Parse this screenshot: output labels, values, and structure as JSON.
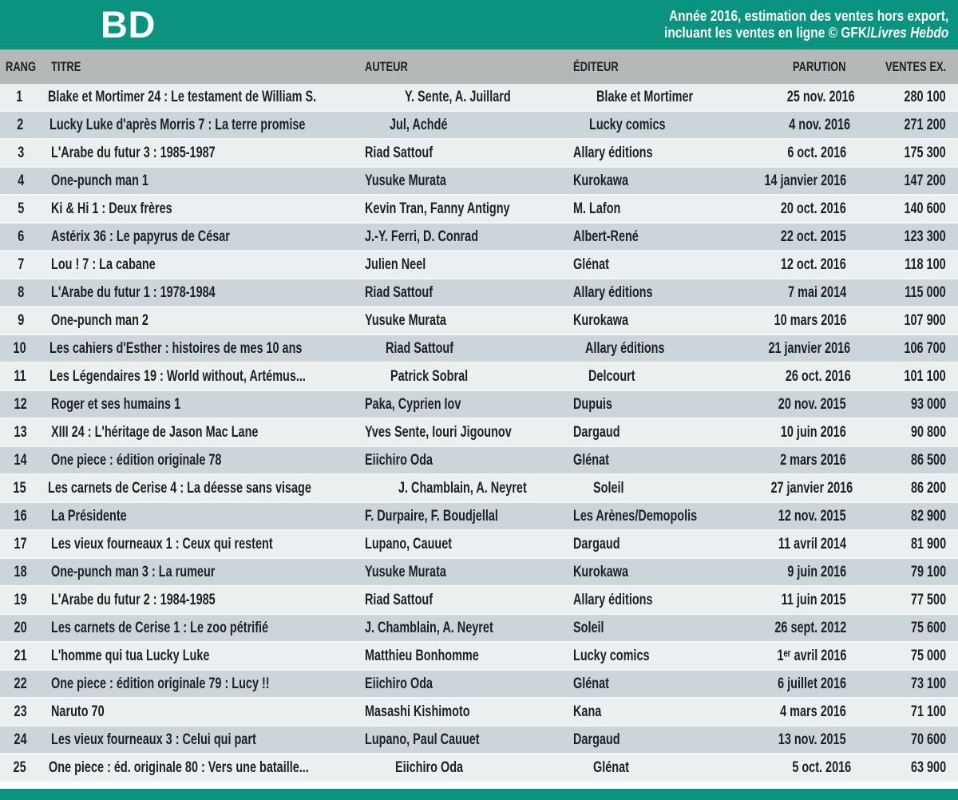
{
  "header": {
    "category": "BD",
    "note_line1": "Année 2016, estimation des ventes hors export,",
    "note_line2_prefix": "incluant les ventes en ligne © GFK/",
    "note_line2_italic": "Livres Hebdo"
  },
  "colors": {
    "teal": "#0a9480",
    "header_band": "#b4b8b7",
    "row_odd": "#eceff0",
    "row_even": "#ccd5d9",
    "row_gap": "#f3f5f5",
    "text": "#1e2124",
    "header_text": "#ffffff"
  },
  "chart_data": {
    "type": "table",
    "title": "BD",
    "source_note": "Année 2016, estimation des ventes hors export, incluant les ventes en ligne © GFK/Livres Hebdo",
    "columns": [
      "RANG",
      "TITRE",
      "AUTEUR",
      "ÉDITEUR",
      "PARUTION",
      "VENTES EX."
    ],
    "rows": [
      [
        "1",
        "Blake et Mortimer 24 : Le testament de William S.",
        "Y. Sente, A. Juillard",
        "Blake et Mortimer",
        "25 nov. 2016",
        "280 100"
      ],
      [
        "2",
        "Lucky Luke d'après Morris 7 : La terre promise",
        "Jul, Achdé",
        "Lucky comics",
        "4 nov. 2016",
        "271 200"
      ],
      [
        "3",
        "L'Arabe du futur 3 : 1985-1987",
        "Riad Sattouf",
        "Allary éditions",
        "6 oct. 2016",
        "175 300"
      ],
      [
        "4",
        "One-punch man 1",
        "Yusuke Murata",
        "Kurokawa",
        "14 janvier 2016",
        "147 200"
      ],
      [
        "5",
        "Ki & Hi 1 : Deux frères",
        "Kevin Tran, Fanny Antigny",
        "M. Lafon",
        "20 oct. 2016",
        "140 600"
      ],
      [
        "6",
        "Astérix 36 : Le papyrus de César",
        "J.-Y. Ferri, D. Conrad",
        "Albert-René",
        "22 oct. 2015",
        "123 300"
      ],
      [
        "7",
        "Lou ! 7 : La cabane",
        "Julien Neel",
        "Glénat",
        "12 oct. 2016",
        "118 100"
      ],
      [
        "8",
        "L'Arabe du futur 1 : 1978-1984",
        "Riad Sattouf",
        "Allary éditions",
        "7 mai 2014",
        "115 000"
      ],
      [
        "9",
        "One-punch man 2",
        "Yusuke Murata",
        "Kurokawa",
        "10 mars 2016",
        "107 900"
      ],
      [
        "10",
        "Les cahiers d'Esther : histoires de mes 10 ans",
        "Riad Sattouf",
        "Allary éditions",
        "21 janvier 2016",
        "106 700"
      ],
      [
        "11",
        "Les Légendaires 19 : World without, Artémus...",
        "Patrick Sobral",
        "Delcourt",
        "26 oct. 2016",
        "101 100"
      ],
      [
        "12",
        "Roger et ses humains 1",
        "Paka, Cyprien Iov",
        "Dupuis",
        "20 nov. 2015",
        "93 000"
      ],
      [
        "13",
        "XIII 24 : L'héritage de Jason Mac Lane",
        "Yves Sente, Iouri Jigounov",
        "Dargaud",
        "10 juin 2016",
        "90 800"
      ],
      [
        "14",
        "One piece : édition originale 78",
        "Eiichiro Oda",
        "Glénat",
        "2 mars 2016",
        "86 500"
      ],
      [
        "15",
        "Les carnets de Cerise 4 : La déesse sans visage",
        "J. Chamblain, A. Neyret",
        "Soleil",
        "27 janvier 2016",
        "86 200"
      ],
      [
        "16",
        "La Présidente",
        "F. Durpaire, F. Boudjellal",
        "Les Arènes/Demopolis",
        "12 nov. 2015",
        "82 900"
      ],
      [
        "17",
        "Les vieux fourneaux 1 : Ceux qui restent",
        "Lupano, Cauuet",
        "Dargaud",
        "11 avril 2014",
        "81 900"
      ],
      [
        "18",
        "One-punch man 3 : La rumeur",
        "Yusuke Murata",
        "Kurokawa",
        "9 juin 2016",
        "79 100"
      ],
      [
        "19",
        "L'Arabe du futur 2 : 1984-1985",
        "Riad Sattouf",
        "Allary éditions",
        "11 juin 2015",
        "77 500"
      ],
      [
        "20",
        "Les carnets de Cerise 1 : Le zoo pétrifié",
        "J. Chamblain, A. Neyret",
        "Soleil",
        "26 sept. 2012",
        "75 600"
      ],
      [
        "21",
        "L'homme qui tua Lucky Luke",
        "Matthieu Bonhomme",
        "Lucky comics",
        "1ᵉʳ avril 2016",
        "75 000"
      ],
      [
        "22",
        "One piece : édition originale 79 : Lucy !!",
        "Eiichiro Oda",
        "Glénat",
        "6 juillet 2016",
        "73 100"
      ],
      [
        "23",
        "Naruto 70",
        "Masashi Kishimoto",
        "Kana",
        "4 mars 2016",
        "71 100"
      ],
      [
        "24",
        "Les vieux fourneaux 3 : Celui qui part",
        "Lupano, Paul Cauuet",
        "Dargaud",
        "13 nov. 2015",
        "70 600"
      ],
      [
        "25",
        "One piece : éd. originale 80 : Vers une bataille...",
        "Eiichiro Oda",
        "Glénat",
        "5 oct. 2016",
        "63 900"
      ]
    ],
    "sales_numeric": [
      280100,
      271200,
      175300,
      147200,
      140600,
      123300,
      118100,
      115000,
      107900,
      106700,
      101100,
      93000,
      90800,
      86500,
      86200,
      82900,
      81900,
      79100,
      77500,
      75600,
      75000,
      73100,
      71100,
      70600,
      63900
    ]
  }
}
